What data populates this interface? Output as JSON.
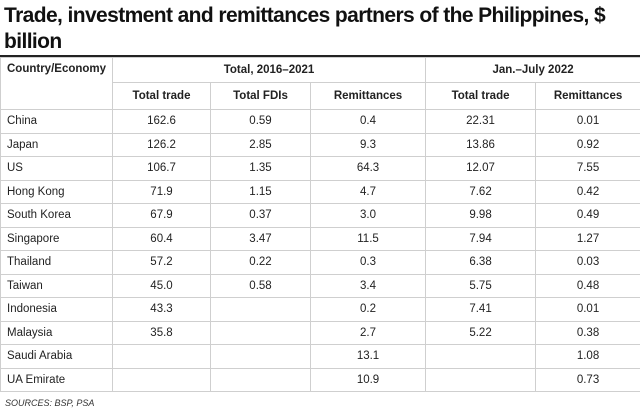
{
  "header": {
    "title": "Trade, investment and remittances partners of the Philippines, $ billion"
  },
  "table": {
    "group_headers": [
      "Country/Economy",
      "Total, 2016–2021",
      "Jan.–July 2022"
    ],
    "columns": [
      "Total trade",
      "Total FDIs",
      "Remittances",
      "Total trade",
      "Remittances"
    ],
    "rows": [
      [
        "China",
        "162.6",
        "0.59",
        "0.4",
        "22.31",
        "0.01"
      ],
      [
        "Japan",
        "126.2",
        "2.85",
        "9.3",
        "13.86",
        "0.92"
      ],
      [
        "US",
        "106.7",
        "1.35",
        "64.3",
        "12.07",
        "7.55"
      ],
      [
        "Hong Kong",
        "71.9",
        "1.15",
        "4.7",
        "7.62",
        "0.42"
      ],
      [
        "South Korea",
        "67.9",
        "0.37",
        "3.0",
        "9.98",
        "0.49"
      ],
      [
        "Singapore",
        "60.4",
        "3.47",
        "11.5",
        "7.94",
        "1.27"
      ],
      [
        "Thailand",
        "57.2",
        "0.22",
        "0.3",
        "6.38",
        "0.03"
      ],
      [
        "Taiwan",
        "45.0",
        "0.58",
        "3.4",
        "5.75",
        "0.48"
      ],
      [
        "Indonesia",
        "43.3",
        null,
        "0.2",
        "7.41",
        "0.01"
      ],
      [
        "Malaysia",
        "35.8",
        null,
        "2.7",
        "5.22",
        "0.38"
      ],
      [
        "Saudi Arabia",
        null,
        null,
        "13.1",
        null,
        "1.08"
      ],
      [
        "UA Emirate",
        null,
        null,
        "10.9",
        null,
        "0.73"
      ]
    ]
  },
  "footer": {
    "source": "SOURCES: BSP, PSA"
  }
}
